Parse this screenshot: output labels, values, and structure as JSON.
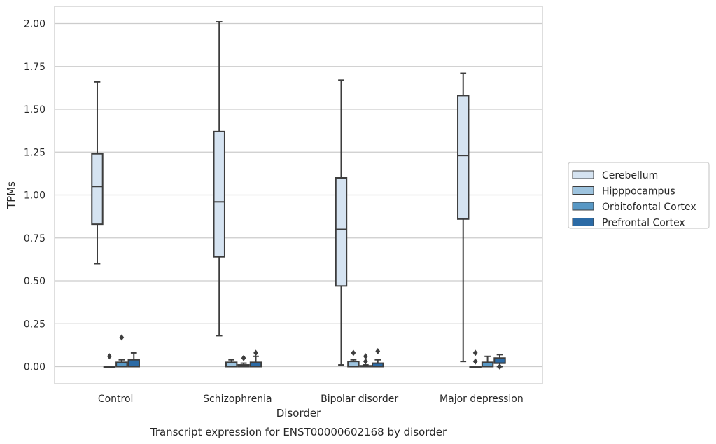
{
  "chart_data": {
    "type": "box",
    "caption": "Transcript expression for ENST00000602168 by disorder",
    "xlabel": "Disorder",
    "ylabel": "TPMs",
    "ylim": [
      -0.1,
      2.1
    ],
    "yticks": [
      0.0,
      0.25,
      0.5,
      0.75,
      1.0,
      1.25,
      1.5,
      1.75,
      2.0
    ],
    "ytick_labels": [
      "0.00",
      "0.25",
      "0.50",
      "0.75",
      "1.00",
      "1.25",
      "1.50",
      "1.75",
      "2.00"
    ],
    "grid": "horizontal",
    "legend_position": "right",
    "categories": [
      "Control",
      "Schizophrenia",
      "Bipolar disorder",
      "Major depression"
    ],
    "series": [
      {
        "name": "Cerebellum",
        "color": "#d5e3f1",
        "boxes": [
          {
            "whislo": 0.6,
            "q1": 0.83,
            "med": 1.05,
            "q3": 1.24,
            "whishi": 1.66,
            "fliers": []
          },
          {
            "whislo": 0.18,
            "q1": 0.64,
            "med": 0.96,
            "q3": 1.37,
            "whishi": 2.01,
            "fliers": []
          },
          {
            "whislo": 0.01,
            "q1": 0.47,
            "med": 0.8,
            "q3": 1.1,
            "whishi": 1.67,
            "fliers": []
          },
          {
            "whislo": 0.03,
            "q1": 0.86,
            "med": 1.23,
            "q3": 1.58,
            "whishi": 1.71,
            "fliers": []
          }
        ]
      },
      {
        "name": "Hipppocampus",
        "color": "#9dc3de",
        "boxes": [
          {
            "whislo": 0.0,
            "q1": 0.0,
            "med": 0.0,
            "q3": 0.0,
            "whishi": 0.0,
            "fliers": [
              0.06
            ]
          },
          {
            "whislo": 0.0,
            "q1": 0.0,
            "med": 0.0,
            "q3": 0.025,
            "whishi": 0.04,
            "fliers": []
          },
          {
            "whislo": 0.0,
            "q1": 0.0,
            "med": 0.0,
            "q3": 0.03,
            "whishi": 0.04,
            "fliers": [
              0.08
            ]
          },
          {
            "whislo": 0.0,
            "q1": 0.0,
            "med": 0.0,
            "q3": 0.0,
            "whishi": 0.0,
            "fliers": [
              0.08,
              0.03
            ]
          }
        ]
      },
      {
        "name": "Orbitofontal Cortex",
        "color": "#5898c5",
        "boxes": [
          {
            "whislo": 0.0,
            "q1": 0.0,
            "med": 0.0,
            "q3": 0.025,
            "whishi": 0.04,
            "fliers": [
              0.17
            ]
          },
          {
            "whislo": 0.0,
            "q1": 0.0,
            "med": 0.0,
            "q3": 0.01,
            "whishi": 0.02,
            "fliers": [
              0.05
            ]
          },
          {
            "whislo": 0.0,
            "q1": 0.0,
            "med": 0.0,
            "q3": 0.005,
            "whishi": 0.01,
            "fliers": [
              0.06,
              0.03
            ]
          },
          {
            "whislo": 0.0,
            "q1": 0.0,
            "med": 0.0,
            "q3": 0.025,
            "whishi": 0.06,
            "fliers": []
          }
        ]
      },
      {
        "name": "Prefrontal Cortex",
        "color": "#2b6aa5",
        "boxes": [
          {
            "whislo": 0.0,
            "q1": 0.0,
            "med": 0.0,
            "q3": 0.04,
            "whishi": 0.08,
            "fliers": []
          },
          {
            "whislo": 0.0,
            "q1": 0.0,
            "med": 0.0,
            "q3": 0.025,
            "whishi": 0.06,
            "fliers": [
              0.08
            ]
          },
          {
            "whislo": 0.0,
            "q1": 0.0,
            "med": 0.0,
            "q3": 0.02,
            "whishi": 0.04,
            "fliers": [
              0.09
            ]
          },
          {
            "whislo": 0.0,
            "q1": 0.02,
            "med": 0.02,
            "q3": 0.05,
            "whishi": 0.07,
            "fliers": [
              0.0
            ]
          }
        ]
      }
    ]
  }
}
